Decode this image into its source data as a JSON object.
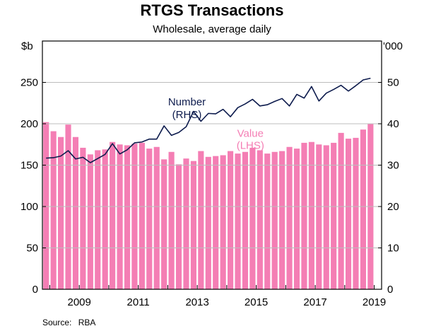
{
  "chart_data": {
    "type": "bar+line",
    "title": "RTGS Transactions",
    "subtitle": "Wholesale, average daily",
    "left_axis": {
      "unit_label": "$b",
      "ylim": [
        0,
        300
      ],
      "ticks": [
        0,
        50,
        100,
        150,
        200,
        250
      ]
    },
    "right_axis": {
      "unit_label": "'000",
      "ylim": [
        0,
        60
      ],
      "ticks": [
        0,
        10,
        20,
        30,
        40,
        50
      ]
    },
    "x_axis": {
      "range": [
        2007.75,
        2019.25
      ],
      "tick_labels": [
        "2009",
        "2011",
        "2013",
        "2015",
        "2017",
        "2019"
      ],
      "tick_positions": [
        2009,
        2011,
        2013,
        2015,
        2017,
        2019
      ]
    },
    "series": [
      {
        "name": "Value",
        "axis": "LHS",
        "kind": "bar",
        "color": "#f47eb4",
        "annotation": [
          "Value",
          "(LHS)"
        ],
        "x": [
          2007.875,
          2008.125,
          2008.375,
          2008.625,
          2008.875,
          2009.125,
          2009.375,
          2009.625,
          2009.875,
          2010.125,
          2010.375,
          2010.625,
          2010.875,
          2011.125,
          2011.375,
          2011.625,
          2011.875,
          2012.125,
          2012.375,
          2012.625,
          2012.875,
          2013.125,
          2013.375,
          2013.625,
          2013.875,
          2014.125,
          2014.375,
          2014.625,
          2014.875,
          2015.125,
          2015.375,
          2015.625,
          2015.875,
          2016.125,
          2016.375,
          2016.625,
          2016.875,
          2017.125,
          2017.375,
          2017.625,
          2017.875,
          2018.125,
          2018.375,
          2018.625,
          2018.875
        ],
        "values": [
          202,
          191,
          184,
          199,
          184,
          171,
          163,
          168,
          169,
          178,
          175,
          174,
          176,
          177,
          170,
          172,
          157,
          166,
          151,
          158,
          155,
          167,
          160,
          161,
          162,
          167,
          164,
          166,
          171,
          168,
          164,
          166,
          167,
          172,
          170,
          177,
          178,
          175,
          174,
          177,
          189,
          182,
          183,
          193,
          200
        ]
      },
      {
        "name": "Number",
        "axis": "RHS",
        "kind": "line",
        "color": "#0d1b4d",
        "annotation": [
          "Number",
          "(RHS)"
        ],
        "x": [
          2007.875,
          2008.125,
          2008.375,
          2008.625,
          2008.875,
          2009.125,
          2009.375,
          2009.625,
          2009.875,
          2010.125,
          2010.375,
          2010.625,
          2010.875,
          2011.125,
          2011.375,
          2011.625,
          2011.875,
          2012.125,
          2012.375,
          2012.625,
          2012.875,
          2013.125,
          2013.375,
          2013.625,
          2013.875,
          2014.125,
          2014.375,
          2014.625,
          2014.875,
          2015.125,
          2015.375,
          2015.625,
          2015.875,
          2016.125,
          2016.375,
          2016.625,
          2016.875,
          2017.125,
          2017.375,
          2017.625,
          2017.875,
          2018.125,
          2018.375,
          2018.625,
          2018.875
        ],
        "values": [
          31.7,
          31.8,
          32.2,
          33.5,
          31.5,
          31.9,
          30.6,
          31.6,
          32.6,
          35.2,
          32.7,
          33.7,
          35.4,
          35.6,
          36.3,
          36.3,
          39.5,
          37.2,
          37.9,
          39.3,
          43.0,
          40.6,
          42.5,
          42.4,
          43.5,
          41.7,
          43.9,
          44.8,
          45.9,
          44.3,
          44.6,
          45.4,
          46.1,
          44.3,
          47.1,
          46.2,
          49.0,
          45.5,
          47.4,
          48.3,
          49.3,
          47.9,
          49.2,
          50.6,
          51.0
        ]
      }
    ]
  },
  "source": {
    "label": "Source:",
    "value": "RBA"
  }
}
